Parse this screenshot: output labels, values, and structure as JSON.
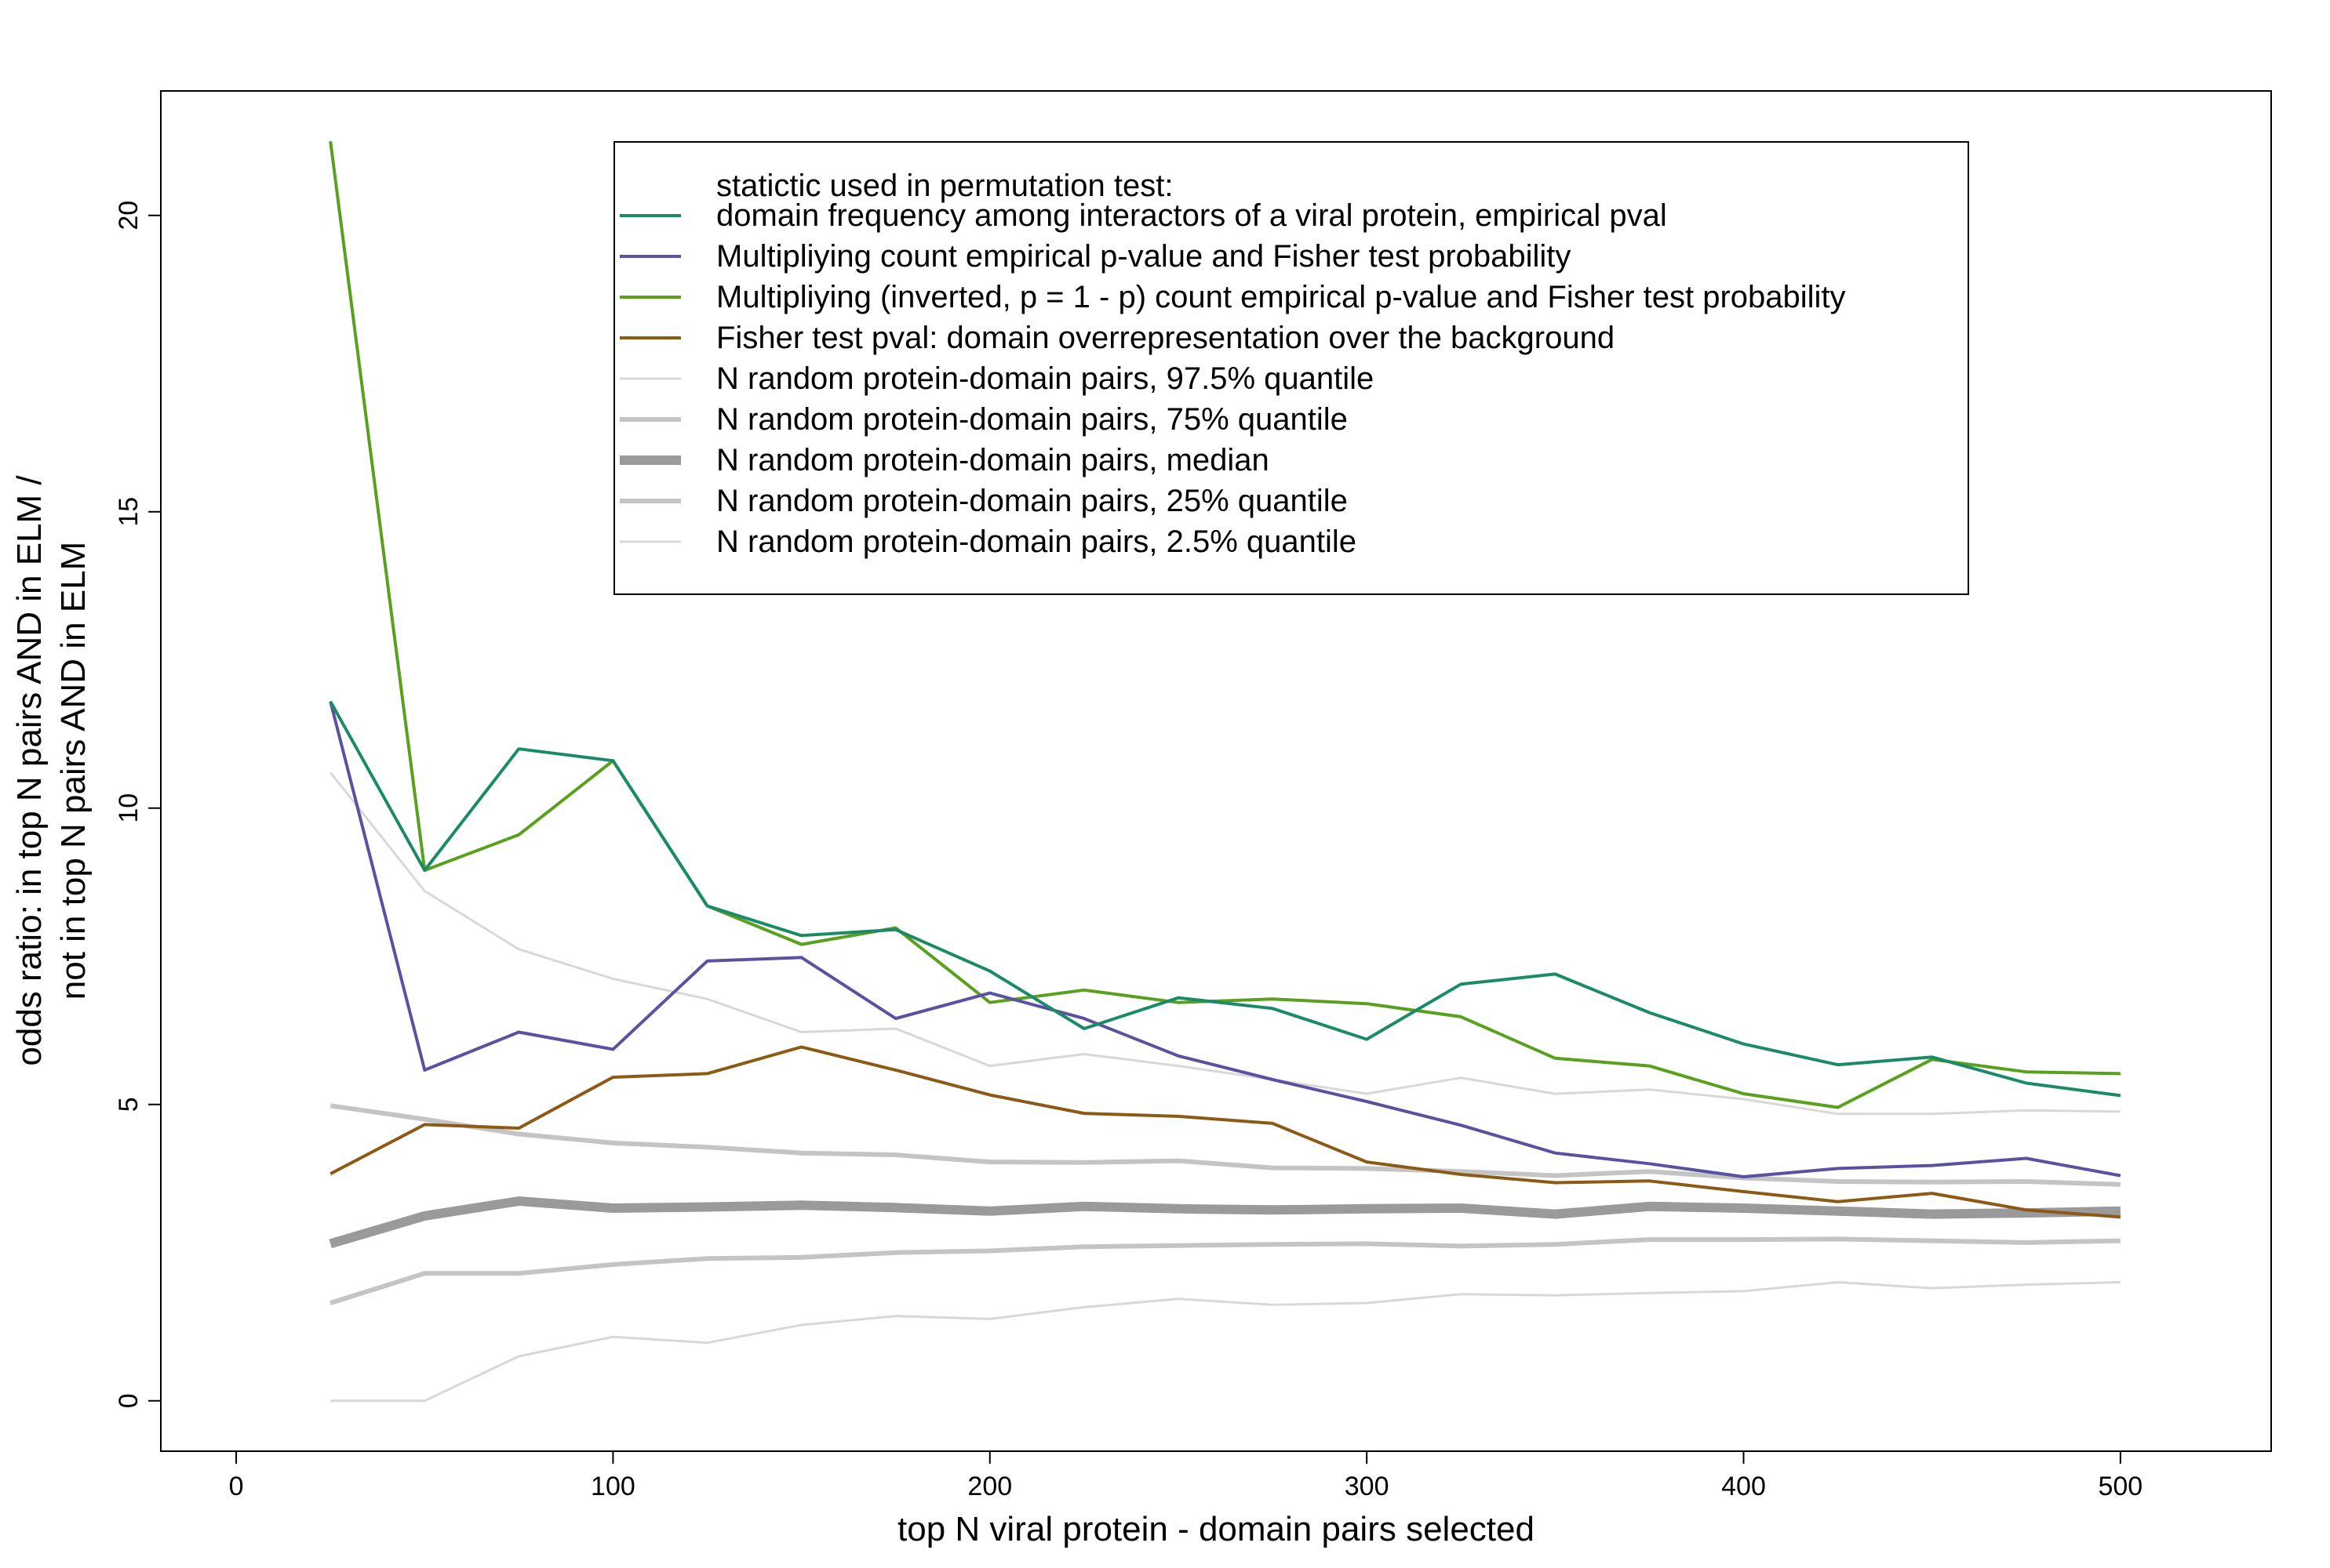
{
  "chart_data": {
    "type": "line",
    "title": "",
    "xlabel": "top N viral protein - domain pairs selected",
    "ylabel": [
      "odds ratio: in top N pairs AND in ELM /",
      "not in top N pairs AND in ELM"
    ],
    "xlim": [
      -20,
      540
    ],
    "ylim": [
      -0.85,
      22.1
    ],
    "xticks": [
      "0",
      "100",
      "200",
      "300",
      "400",
      "500"
    ],
    "yticks": [
      "0",
      "5",
      "10",
      "15",
      "20"
    ],
    "grid": false,
    "legend": {
      "position": "top-center",
      "title": "statictic used in permutation test:"
    },
    "x": [
      25,
      50,
      75,
      100,
      125,
      150,
      175,
      200,
      225,
      250,
      275,
      300,
      325,
      350,
      375,
      400,
      425,
      450,
      475,
      500
    ],
    "series": [
      {
        "name": "domain frequency among interactors of a viral protein, empirical pval",
        "color": "#1b8a68",
        "width": 4,
        "values": [
          11.8,
          8.95,
          11.0,
          10.8,
          8.35,
          7.85,
          7.95,
          7.25,
          6.28,
          6.8,
          6.62,
          6.1,
          7.03,
          7.2,
          6.55,
          6.02,
          5.67,
          5.8,
          5.36,
          5.15
        ]
      },
      {
        "name": "Multipliying count empirical p-value and Fisher test probability",
        "color": "#5a52a0",
        "width": 4,
        "values": [
          11.8,
          5.58,
          6.22,
          5.93,
          7.42,
          7.48,
          6.45,
          6.88,
          6.45,
          5.82,
          5.42,
          5.05,
          4.65,
          4.18,
          4.0,
          3.78,
          3.92,
          3.97,
          4.09,
          3.8
        ]
      },
      {
        "name": "Multipliying (inverted, p = 1 - p) count empirical p-value and Fisher test probability",
        "color": "#58a01e",
        "width": 4,
        "values": [
          21.25,
          8.95,
          9.55,
          10.8,
          8.35,
          7.7,
          7.98,
          6.72,
          6.93,
          6.72,
          6.78,
          6.7,
          6.48,
          5.78,
          5.65,
          5.18,
          4.95,
          5.76,
          5.55,
          5.52
        ]
      },
      {
        "name": "Fisher test pval: domain overrepresentation over the background",
        "color": "#8c5a14",
        "width": 4,
        "values": [
          3.83,
          4.66,
          4.6,
          5.46,
          5.52,
          5.97,
          5.58,
          5.16,
          4.85,
          4.8,
          4.68,
          4.03,
          3.82,
          3.68,
          3.71,
          3.53,
          3.36,
          3.5,
          3.22,
          3.1
        ]
      },
      {
        "name": "N random protein-domain pairs, 97.5% quantile",
        "color": "#d8d8d8",
        "width": 3,
        "values": [
          10.6,
          8.6,
          7.62,
          7.12,
          6.78,
          6.22,
          6.28,
          5.65,
          5.85,
          5.65,
          5.42,
          5.18,
          5.45,
          5.18,
          5.25,
          5.09,
          4.84,
          4.84,
          4.9,
          4.88
        ]
      },
      {
        "name": "N random protein-domain pairs, 75% quantile",
        "color": "#c4c4c4",
        "width": 6,
        "values": [
          4.98,
          4.75,
          4.5,
          4.35,
          4.28,
          4.18,
          4.15,
          4.03,
          4.02,
          4.05,
          3.93,
          3.92,
          3.87,
          3.8,
          3.87,
          3.76,
          3.7,
          3.69,
          3.7,
          3.65
        ]
      },
      {
        "name": "N random protein-domain pairs, median",
        "color": "#9a9a9a",
        "width": 12,
        "values": [
          2.65,
          3.12,
          3.37,
          3.25,
          3.27,
          3.3,
          3.26,
          3.2,
          3.28,
          3.24,
          3.22,
          3.24,
          3.25,
          3.15,
          3.28,
          3.25,
          3.2,
          3.15,
          3.17,
          3.2
        ]
      },
      {
        "name": "N random protein-domain pairs, 25% quantile",
        "color": "#c4c4c4",
        "width": 6,
        "values": [
          1.65,
          2.15,
          2.15,
          2.3,
          2.4,
          2.42,
          2.5,
          2.53,
          2.6,
          2.62,
          2.64,
          2.65,
          2.61,
          2.64,
          2.72,
          2.72,
          2.73,
          2.7,
          2.67,
          2.7
        ]
      },
      {
        "name": "N random protein-domain pairs, 2.5% quantile",
        "color": "#d8d8d8",
        "width": 3,
        "values": [
          0.0,
          0.0,
          0.75,
          1.08,
          0.98,
          1.28,
          1.43,
          1.38,
          1.58,
          1.72,
          1.62,
          1.65,
          1.8,
          1.78,
          1.82,
          1.85,
          2.0,
          1.9,
          1.96,
          2.0
        ]
      }
    ]
  }
}
